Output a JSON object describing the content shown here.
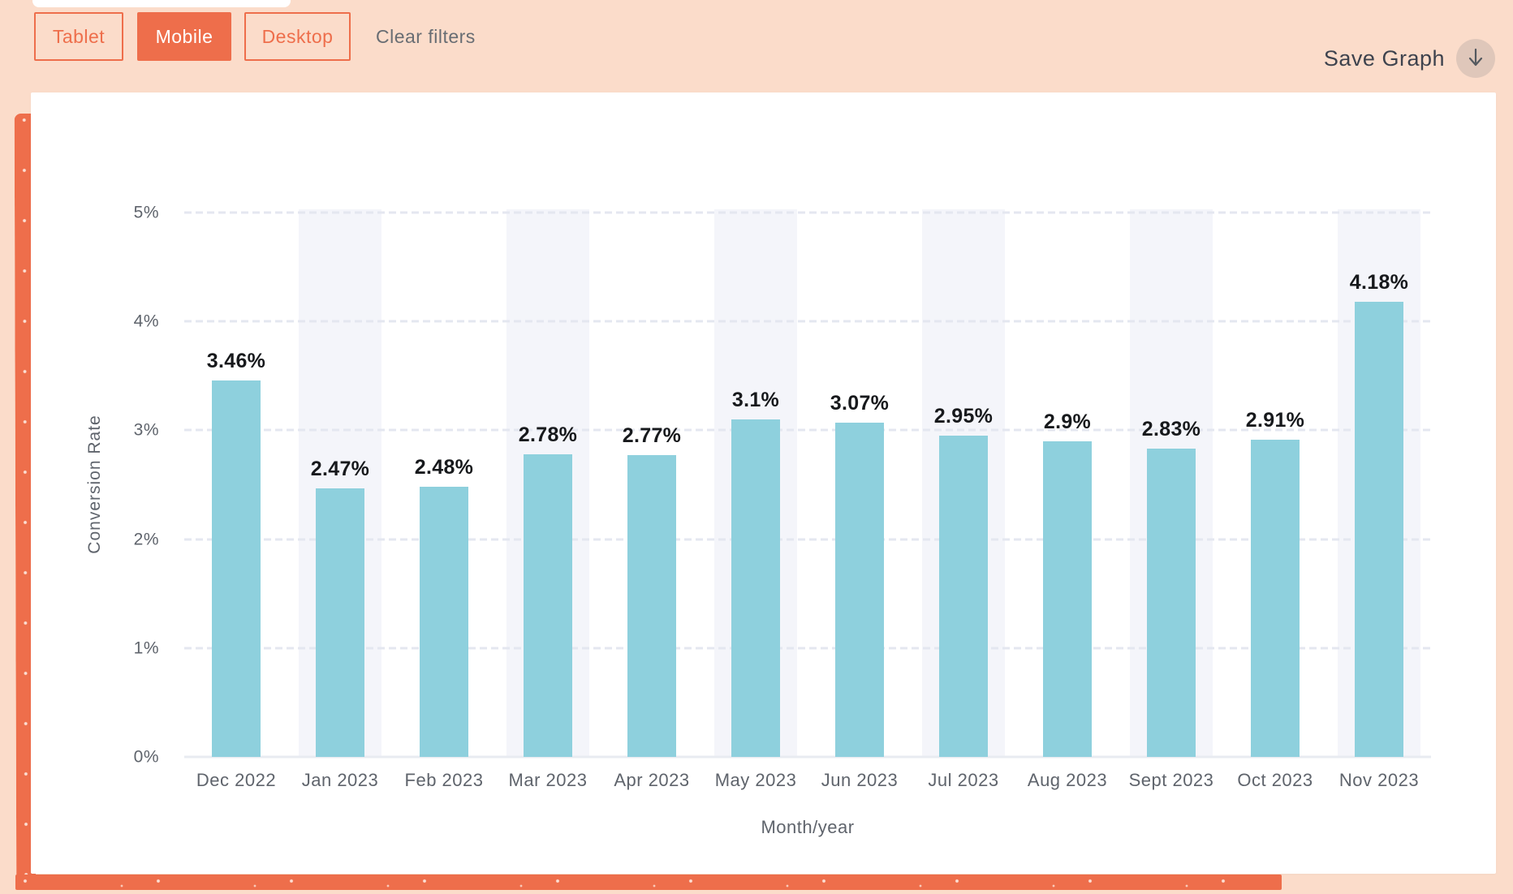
{
  "toolbar": {
    "filters": [
      {
        "label": "Tablet",
        "active": false
      },
      {
        "label": "Mobile",
        "active": true
      },
      {
        "label": "Desktop",
        "active": false
      }
    ],
    "clear_filters_label": "Clear filters",
    "save_graph_label": "Save Graph"
  },
  "icons": {
    "download_arrow": "down-arrow"
  },
  "colors": {
    "page_background": "#fbdcca",
    "accent_orange": "#ee6e4b",
    "card_background": "#ffffff",
    "save_circle_background": "#dfc7ba",
    "save_label_text": "#3e434e",
    "clear_filters_text": "#686d73"
  },
  "chart_data": {
    "type": "bar",
    "categories": [
      "Dec 2022",
      "Jan 2023",
      "Feb 2023",
      "Mar 2023",
      "Apr 2023",
      "May 2023",
      "Jun 2023",
      "Jul 2023",
      "Aug 2023",
      "Sept 2023",
      "Oct 2023",
      "Nov 2023"
    ],
    "values": [
      3.46,
      2.47,
      2.48,
      2.78,
      2.77,
      3.1,
      3.07,
      2.95,
      2.9,
      2.83,
      2.91,
      4.18
    ],
    "value_labels": [
      "3.46%",
      "2.47%",
      "2.48%",
      "2.78%",
      "2.77%",
      "3.1%",
      "3.07%",
      "2.95%",
      "2.9%",
      "2.83%",
      "2.91%",
      "4.18%"
    ],
    "xlabel": "Month/year",
    "ylabel": "Conversion Rate",
    "ylim": [
      0,
      5
    ],
    "yticks": {
      "values": [
        0,
        1,
        2,
        3,
        4,
        5
      ],
      "labels": [
        "0%",
        "1%",
        "2%",
        "3%",
        "4%",
        "5%"
      ]
    },
    "grid": "horizontal dashed",
    "legend": "none",
    "banding": "light column bands behind every second category starting at Jan 2023",
    "bar_color": "#8ed0dd",
    "band_color": "#f4f5fa",
    "grid_color": "#e4e7f0",
    "axis_line_color": "#e8ebf1",
    "value_label_color": "#17191c",
    "tick_label_color": "#5f646c"
  }
}
